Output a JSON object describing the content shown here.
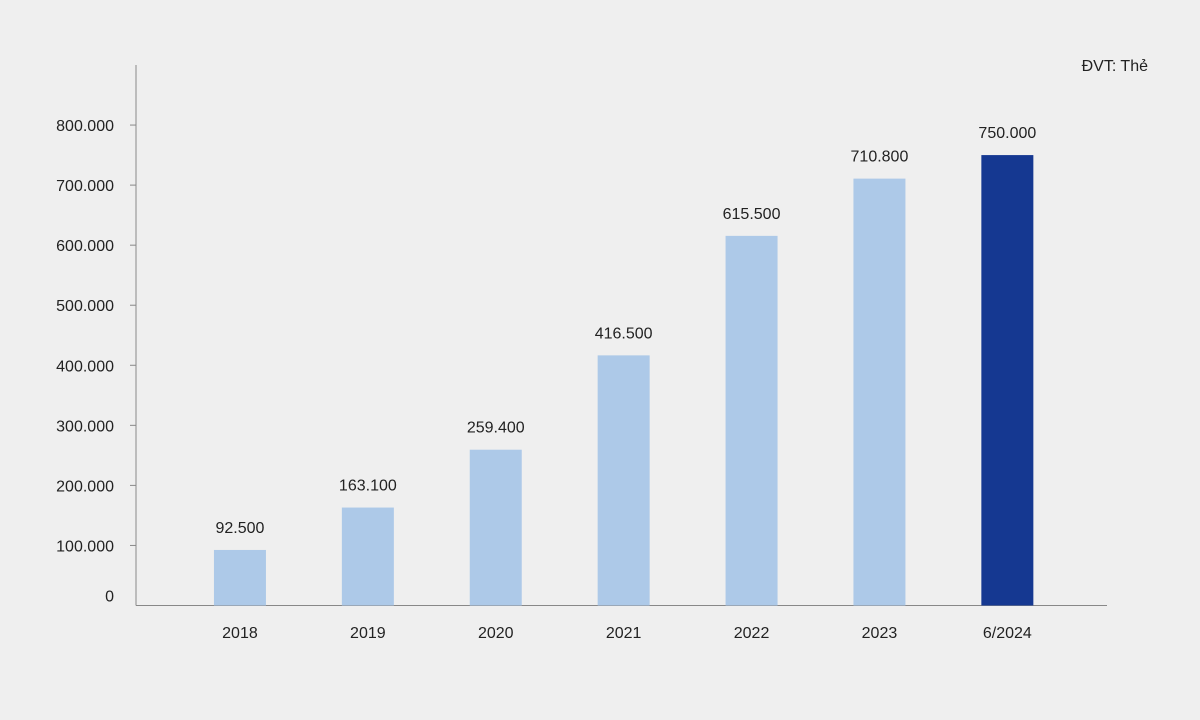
{
  "chart_data": {
    "type": "bar",
    "unit_label": "ĐVT: Thẻ",
    "categories": [
      "2018",
      "2019",
      "2020",
      "2021",
      "2022",
      "2023",
      "6/2024"
    ],
    "values": [
      92500,
      163100,
      259400,
      416500,
      615500,
      710800,
      750000
    ],
    "value_labels": [
      "92.500",
      "163.100",
      "259.400",
      "416.500",
      "615.500",
      "710.800",
      "750.000"
    ],
    "yticks": [
      0,
      100000,
      200000,
      300000,
      400000,
      500000,
      600000,
      700000,
      800000
    ],
    "ytick_labels": [
      "0",
      "100.000",
      "200.000",
      "300.000",
      "400.000",
      "500.000",
      "600.000",
      "700.000",
      "800.000"
    ],
    "ylim": [
      0,
      900000
    ],
    "grid": false,
    "colors": {
      "bar": "#adc9e8",
      "highlight_bar": "#153891",
      "axis": "#888888",
      "background": "#efefef"
    },
    "highlight_category": "6/2024"
  }
}
